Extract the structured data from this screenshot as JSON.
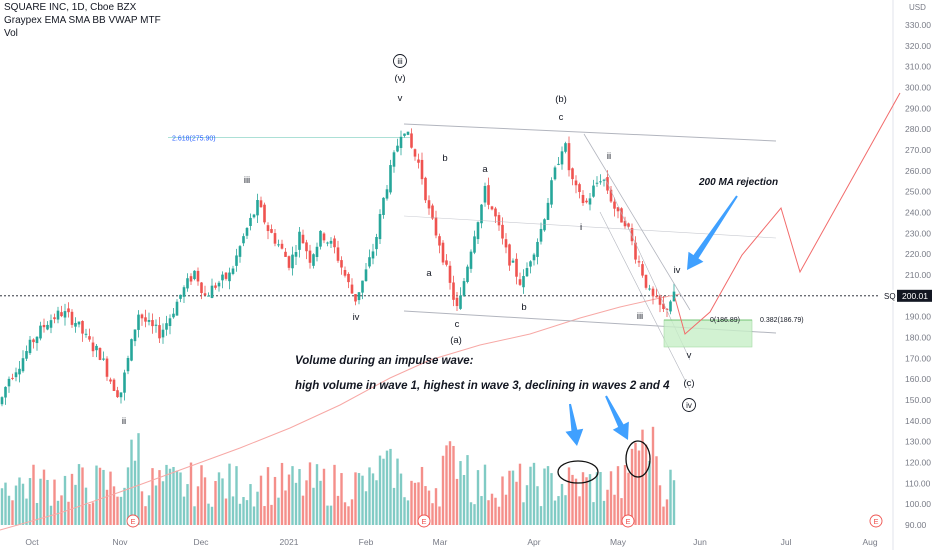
{
  "header": {
    "symbol_line": "SQUARE INC, 1D, Cboe BZX",
    "indicators_line": "Graypex EMA SMA BB VWAP MTF",
    "volume_label": "Vol"
  },
  "price_axis": {
    "currency": "USD",
    "current_price_tag": "SQ",
    "current_price": "200.01"
  },
  "annotations": {
    "fib_extension": "2.618(275.90)",
    "fib_zero": "0(186.89)",
    "fib_0382": "0.382(186.79)",
    "ma_rejection": "200 MA rejection",
    "note_line1": "Volume during an impulse wave:",
    "note_line2": "high volume in wave 1, highest in wave 3, declining in waves 2 and 4"
  },
  "colors": {
    "up": "#26a69a",
    "down": "#ef5350",
    "vol_up": "#80cbc4",
    "vol_down": "#f48f8a",
    "ma200": "#f7a8a5",
    "projection": "#f26b6b",
    "arrow": "#3fa0ff",
    "channel": "#b2b5be",
    "fib_line": "#22ab94",
    "zone": "#c8efc8",
    "earnings": "#ef5350",
    "text": "#131722",
    "axis_text": "#787b86"
  },
  "chart_data": {
    "type": "candlestick",
    "y_axis": {
      "min": 85,
      "max": 336,
      "ticks": [
        90,
        100,
        110,
        120,
        130,
        140,
        150,
        160,
        170,
        180,
        190,
        200,
        210,
        220,
        230,
        240,
        250,
        260,
        270,
        280,
        290,
        300,
        310,
        320,
        330
      ]
    },
    "x_axis_labels": [
      "Oct",
      "Nov",
      "Dec",
      "2021",
      "Feb",
      "Mar",
      "Apr",
      "May",
      "Jun",
      "Jul",
      "Aug"
    ],
    "earnings_markers": [
      "E",
      "E",
      "E",
      "E"
    ],
    "wave_labels": [
      "ii",
      "iii",
      "iv",
      "v",
      "(v)",
      "a",
      "b",
      "c",
      "(a)",
      "a",
      "b",
      "c",
      "(b)",
      "i",
      "ii",
      "iii",
      "iv",
      "v",
      "(c)"
    ],
    "circled_labels": [
      "iii",
      "iv"
    ],
    "price_key_points": [
      {
        "date": "Oct",
        "price": 148
      },
      {
        "date": "mid Oct",
        "price": 190
      },
      {
        "date": "early Nov",
        "price": 155
      },
      {
        "date": "Dec",
        "price": 215
      },
      {
        "date": "early Jan",
        "price": 245
      },
      {
        "date": "late Jan",
        "price": 200
      },
      {
        "date": "mid Feb",
        "price": 283
      },
      {
        "date": "early Mar",
        "price": 190
      },
      {
        "date": "mid Mar",
        "price": 250
      },
      {
        "date": "late Mar",
        "price": 200
      },
      {
        "date": "mid Apr",
        "price": 275
      },
      {
        "date": "late Apr",
        "price": 240
      },
      {
        "date": "early May",
        "price": 260
      },
      {
        "date": "mid May",
        "price": 192
      },
      {
        "date": "current",
        "price": 200.01
      }
    ]
  }
}
